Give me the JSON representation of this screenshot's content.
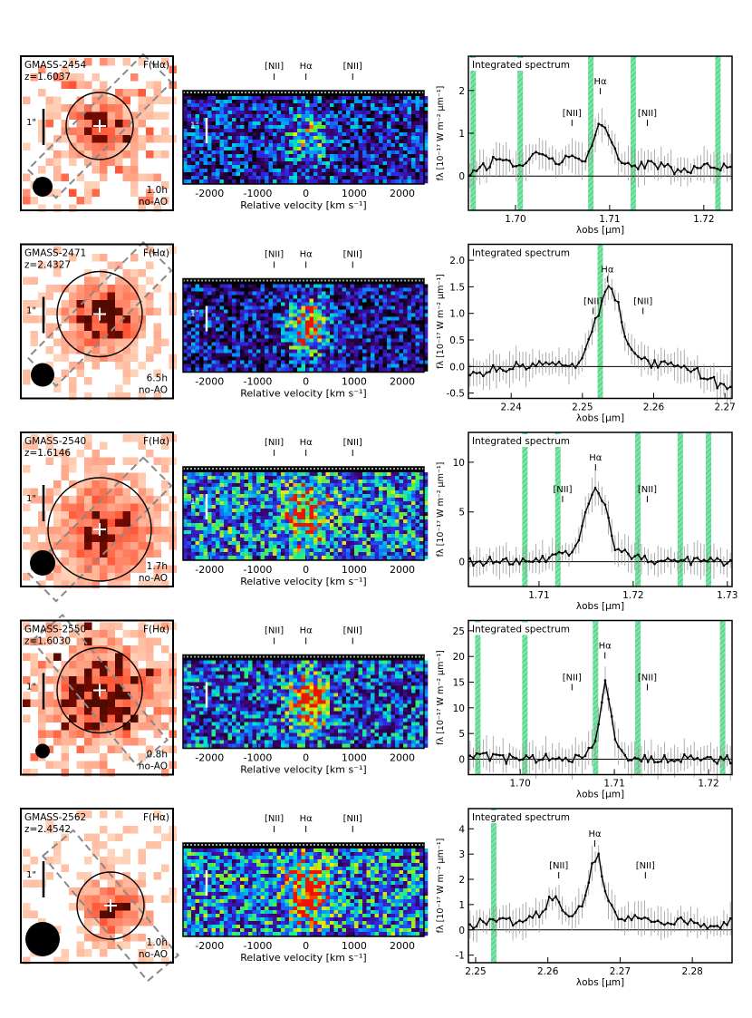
{
  "figure": {
    "rows": [
      {
        "galaxy": "GMASS-2454",
        "redshift": "z=1.6037",
        "map_label": "F(Hα)",
        "scale_label": "1\"",
        "exposure": "1.0h",
        "mode": "no-AO",
        "vel_lines": [
          "[NII]",
          "Hα",
          "[NII]"
        ],
        "vel_ticks": [
          "-2000",
          "-1000",
          "0",
          "1000",
          "2000"
        ],
        "vel_xlabel": "Relative velocity  [km s⁻¹]",
        "spec_title": "Integrated spectrum",
        "spec_lines": [
          "[NII]",
          "Hα",
          "[NII]"
        ],
        "x_ticks": [
          "1.70",
          "1.71",
          "1.72"
        ],
        "y_ticks": [
          "0",
          "1",
          "2"
        ],
        "xlabel": "λobs  [μm]",
        "ylabel": "fλ [10⁻¹⁷ W m⁻² μm⁻¹]"
      },
      {
        "galaxy": "GMASS-2471",
        "redshift": "z=2.4327",
        "map_label": "F(Hα)",
        "scale_label": "1\"",
        "exposure": "6.5h",
        "mode": "no-AO",
        "vel_lines": [
          "[NII]",
          "Hα",
          "[NII]"
        ],
        "vel_ticks": [
          "-2000",
          "-1000",
          "0",
          "1000",
          "2000"
        ],
        "vel_xlabel": "Relative velocity  [km s⁻¹]",
        "spec_title": "Integrated spectrum",
        "spec_lines": [
          "[NII]",
          "Hα",
          "[NII]"
        ],
        "x_ticks": [
          "2.24",
          "2.25",
          "2.26",
          "2.27"
        ],
        "y_ticks": [
          "-0.5",
          "0.0",
          "0.5",
          "1.0",
          "1.5",
          "2.0"
        ],
        "xlabel": "λobs  [μm]",
        "ylabel": "fλ [10⁻¹⁷ W m⁻² μm⁻¹]"
      },
      {
        "galaxy": "GMASS-2540",
        "redshift": "z=1.6146",
        "map_label": "F(Hα)",
        "scale_label": "1\"",
        "exposure": "1.7h",
        "mode": "no-AO",
        "vel_lines": [
          "[NII]",
          "Hα",
          "[NII]"
        ],
        "vel_ticks": [
          "-2000",
          "-1000",
          "0",
          "1000",
          "2000"
        ],
        "vel_xlabel": "Relative velocity  [km s⁻¹]",
        "spec_title": "Integrated spectrum",
        "spec_lines": [
          "[NII]",
          "Hα",
          "[NII]"
        ],
        "x_ticks": [
          "1.71",
          "1.72",
          "1.73"
        ],
        "y_ticks": [
          "0",
          "5",
          "10"
        ],
        "xlabel": "λobs  [μm]",
        "ylabel": "fλ [10⁻¹⁷ W m⁻² μm⁻¹]"
      },
      {
        "galaxy": "GMASS-2550",
        "redshift": "z=1.6030",
        "map_label": "F(Hα)",
        "scale_label": "1\"",
        "exposure": "0.8h",
        "mode": "no-AO",
        "vel_lines": [
          "[NII]",
          "Hα",
          "[NII]"
        ],
        "vel_ticks": [
          "-2000",
          "-1000",
          "0",
          "1000",
          "2000"
        ],
        "vel_xlabel": "Relative velocity  [km s⁻¹]",
        "spec_title": "Integrated spectrum",
        "spec_lines": [
          "[NII]",
          "Hα",
          "[NII]"
        ],
        "x_ticks": [
          "1.70",
          "1.71",
          "1.72"
        ],
        "y_ticks": [
          "0",
          "5",
          "10",
          "15",
          "20",
          "25"
        ],
        "xlabel": "λobs  [μm]",
        "ylabel": "fλ [10⁻¹⁷ W m⁻² μm⁻¹]"
      },
      {
        "galaxy": "GMASS-2562",
        "redshift": "z=2.4542",
        "map_label": "F(Hα)",
        "scale_label": "1\"",
        "exposure": "1.0h",
        "mode": "no-AO",
        "vel_lines": [
          "[NII]",
          "Hα",
          "[NII]"
        ],
        "vel_ticks": [
          "-2000",
          "-1000",
          "0",
          "1000",
          "2000"
        ],
        "vel_xlabel": "Relative velocity  [km s⁻¹]",
        "spec_title": "Integrated spectrum",
        "spec_lines": [
          "[NII]",
          "Hα",
          "[NII]"
        ],
        "x_ticks": [
          "2.25",
          "2.26",
          "2.27",
          "2.28"
        ],
        "y_ticks": [
          "-1",
          "0",
          "1",
          "2",
          "3",
          "4"
        ],
        "xlabel": "λobs  [μm]",
        "ylabel": "fλ [10⁻¹⁷ W m⁻² μm⁻¹]"
      }
    ]
  },
  "chart_data": [
    {
      "type": "line",
      "title": "Integrated spectrum",
      "galaxy": "GMASS-2454",
      "xlabel": "λobs [μm]",
      "ylabel": "fλ [10⁻¹⁷ W m⁻² μm⁻¹]",
      "xlim": [
        1.695,
        1.723
      ],
      "ylim": [
        -0.8,
        2.8
      ],
      "lines": {
        "NII_a": 1.706,
        "Halpha": 1.709,
        "NII_b": 1.714
      },
      "sky_bands": [
        1.6955,
        1.7005,
        1.708,
        1.7125,
        1.7215
      ],
      "peak_value": 1.3,
      "x": [
        1.696,
        1.698,
        1.7,
        1.702,
        1.704,
        1.706,
        1.707,
        1.708,
        1.709,
        1.71,
        1.711,
        1.712,
        1.714,
        1.716,
        1.718,
        1.72,
        1.722
      ],
      "values": [
        0.1,
        0.4,
        0.2,
        0.5,
        0.3,
        0.5,
        0.3,
        0.6,
        1.3,
        0.8,
        0.4,
        0.2,
        0.3,
        0.2,
        0.1,
        0.3,
        0.2
      ]
    },
    {
      "type": "line",
      "title": "Integrated spectrum",
      "galaxy": "GMASS-2471",
      "xlabel": "λobs [μm]",
      "ylabel": "fλ [10⁻¹⁷ W m⁻² μm⁻¹]",
      "xlim": [
        2.234,
        2.271
      ],
      "ylim": [
        -0.6,
        2.3
      ],
      "lines": {
        "NII_a": 2.2515,
        "Halpha": 2.2535,
        "NII_b": 2.2585
      },
      "sky_bands": [
        2.2525
      ],
      "peak_value": 1.5,
      "x": [
        2.236,
        2.24,
        2.244,
        2.248,
        2.25,
        2.252,
        2.253,
        2.254,
        2.255,
        2.256,
        2.258,
        2.262,
        2.266,
        2.27
      ],
      "values": [
        -0.1,
        0.0,
        0.05,
        0.0,
        0.1,
        0.9,
        1.4,
        1.5,
        1.2,
        0.6,
        0.1,
        0.0,
        -0.1,
        -0.4
      ]
    },
    {
      "type": "line",
      "title": "Integrated spectrum",
      "galaxy": "GMASS-2540",
      "xlabel": "λobs [μm]",
      "ylabel": "fλ [10⁻¹⁷ W m⁻² μm⁻¹]",
      "xlim": [
        1.7025,
        1.7305
      ],
      "ylim": [
        -2.5,
        13
      ],
      "lines": {
        "NII_a": 1.7125,
        "Halpha": 1.716,
        "NII_b": 1.7215
      },
      "sky_bands": [
        1.7085,
        1.712,
        1.7205,
        1.725,
        1.728
      ],
      "peak_value": 7.8,
      "x": [
        1.704,
        1.706,
        1.708,
        1.71,
        1.712,
        1.714,
        1.715,
        1.716,
        1.717,
        1.718,
        1.72,
        1.722,
        1.724,
        1.726,
        1.728,
        1.73
      ],
      "values": [
        0.0,
        0.2,
        0.0,
        0.3,
        0.5,
        1.5,
        5.0,
        7.8,
        5.5,
        1.5,
        0.4,
        0.2,
        0.0,
        0.1,
        0.0,
        0.0
      ]
    },
    {
      "type": "line",
      "title": "Integrated spectrum",
      "galaxy": "GMASS-2550",
      "xlabel": "λobs [μm]",
      "ylabel": "fλ [10⁻¹⁷ W m⁻² μm⁻¹]",
      "xlim": [
        1.6945,
        1.7225
      ],
      "ylim": [
        -3,
        27
      ],
      "lines": {
        "NII_a": 1.7055,
        "Halpha": 1.709,
        "NII_b": 1.7135
      },
      "sky_bands": [
        1.6955,
        1.7005,
        1.708,
        1.7125,
        1.7215
      ],
      "peak_value": 15.5,
      "x": [
        1.696,
        1.698,
        1.7,
        1.702,
        1.704,
        1.706,
        1.707,
        1.708,
        1.709,
        1.71,
        1.711,
        1.712,
        1.714,
        1.716,
        1.718,
        1.72,
        1.722
      ],
      "values": [
        0.5,
        0.0,
        0.2,
        0.0,
        0.3,
        0.2,
        0.5,
        3.5,
        15.5,
        5.0,
        0.5,
        0.2,
        0.0,
        0.1,
        0.0,
        0.0,
        0.0
      ]
    },
    {
      "type": "line",
      "title": "Integrated spectrum",
      "galaxy": "GMASS-2562",
      "xlabel": "λobs [μm]",
      "ylabel": "fλ [10⁻¹⁷ W m⁻² μm⁻¹]",
      "xlim": [
        2.249,
        2.2855
      ],
      "ylim": [
        -1.3,
        4.8
      ],
      "lines": {
        "NII_a": 2.2615,
        "Halpha": 2.2665,
        "NII_b": 2.2735
      },
      "sky_bands": [
        2.2525
      ],
      "peak_value": 3.0,
      "x": [
        2.25,
        2.253,
        2.256,
        2.259,
        2.261,
        2.263,
        2.265,
        2.266,
        2.267,
        2.268,
        2.27,
        2.273,
        2.276,
        2.279,
        2.282,
        2.285
      ],
      "values": [
        0.2,
        0.5,
        0.3,
        0.6,
        1.5,
        0.4,
        1.2,
        2.5,
        3.0,
        1.5,
        0.3,
        0.5,
        0.2,
        0.4,
        0.1,
        0.3
      ]
    }
  ]
}
